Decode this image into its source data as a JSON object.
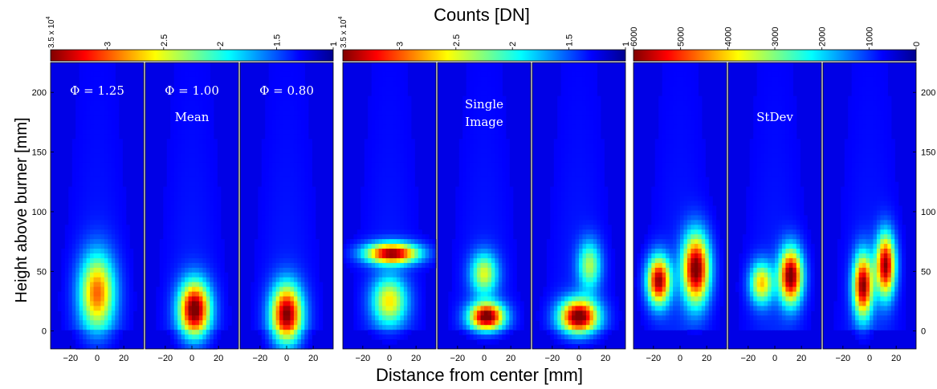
{
  "figure": {
    "top_title": "Counts [DN]",
    "xlabel": "Distance from center [mm]",
    "ylabel": "Height above burner [mm]"
  },
  "chart_data": {
    "type": "heatmap",
    "title": "Counts [DN]",
    "xlabel": "Distance from center [mm]",
    "ylabel": "Height above burner [mm]",
    "colormap": "jet",
    "xlim": [
      -35,
      35
    ],
    "ylim": [
      -15,
      225
    ],
    "xticks": [
      -20,
      0,
      20
    ],
    "yticks": [
      0,
      50,
      100,
      150,
      200
    ],
    "xtick_labels": [
      "−20",
      "0",
      "20"
    ],
    "ytick_labels": [
      "0",
      "50",
      "100",
      "150",
      "200"
    ],
    "groups": [
      {
        "label": "Mean",
        "colorbar": {
          "range": [
            1,
            3.5
          ],
          "ticks": [
            3,
            2.5,
            2,
            1.5,
            1
          ],
          "tick_labels": [
            "3",
            "2.5",
            "2",
            "1.5",
            "1"
          ],
          "exponent_label": "3.5 x 10",
          "exponent": "4",
          "reversed": true
        },
        "panels": [
          {
            "label": "Φ = 1.25",
            "sources": [
              {
                "x": 0,
                "y": 32,
                "sx": 9,
                "sy": 22,
                "a": 0.7
              }
            ]
          },
          {
            "label": "Φ = 1.00",
            "sources": [
              {
                "x": 2,
                "y": 18,
                "sx": 8,
                "sy": 16,
                "a": 1.0
              }
            ]
          },
          {
            "label": "Φ = 0.80",
            "sources": [
              {
                "x": 0,
                "y": 14,
                "sx": 8,
                "sy": 17,
                "a": 0.95
              }
            ]
          }
        ]
      },
      {
        "label": "Single Image",
        "label_lines": [
          "Single",
          "Image"
        ],
        "colorbar": {
          "range": [
            1,
            3.5
          ],
          "ticks": [
            3,
            2.5,
            2,
            1.5,
            1
          ],
          "tick_labels": [
            "3",
            "2.5",
            "2",
            "1.5",
            "1"
          ],
          "exponent_label": "3.5 x 10",
          "exponent": "4",
          "reversed": true
        },
        "panels": [
          {
            "label": "",
            "sources": [
              {
                "x": 2,
                "y": 65,
                "sx": 14,
                "sy": 6,
                "a": 0.95
              },
              {
                "x": 0,
                "y": 25,
                "sx": 9,
                "sy": 14,
                "a": 0.55
              }
            ]
          },
          {
            "label": "",
            "sources": [
              {
                "x": 2,
                "y": 12,
                "sx": 9,
                "sy": 8,
                "a": 1.0
              },
              {
                "x": 0,
                "y": 48,
                "sx": 7,
                "sy": 12,
                "a": 0.5
              }
            ]
          },
          {
            "label": "",
            "sources": [
              {
                "x": 0,
                "y": 12,
                "sx": 10,
                "sy": 10,
                "a": 1.0
              },
              {
                "x": 8,
                "y": 55,
                "sx": 6,
                "sy": 14,
                "a": 0.45
              }
            ]
          }
        ]
      },
      {
        "label": "StDev",
        "colorbar": {
          "range": [
            0,
            6000
          ],
          "ticks": [
            6000,
            5000,
            4000,
            3000,
            2000,
            1000,
            0
          ],
          "tick_labels": [
            "6000",
            "5000",
            "4000",
            "3000",
            "2000",
            "1000",
            "0"
          ],
          "reversed": true
        },
        "panels": [
          {
            "label": "",
            "sources": [
              {
                "x": -16,
                "y": 42,
                "sx": 6,
                "sy": 14,
                "a": 0.95
              },
              {
                "x": 12,
                "y": 52,
                "sx": 7,
                "sy": 20,
                "a": 1.0
              }
            ]
          },
          {
            "label": "",
            "sources": [
              {
                "x": -10,
                "y": 40,
                "sx": 6,
                "sy": 12,
                "a": 0.6
              },
              {
                "x": 12,
                "y": 46,
                "sx": 6,
                "sy": 16,
                "a": 1.0
              }
            ]
          },
          {
            "label": "",
            "sources": [
              {
                "x": -5,
                "y": 38,
                "sx": 5,
                "sy": 18,
                "a": 0.95
              },
              {
                "x": 12,
                "y": 55,
                "sx": 5,
                "sy": 18,
                "a": 0.95
              }
            ]
          }
        ]
      }
    ]
  }
}
